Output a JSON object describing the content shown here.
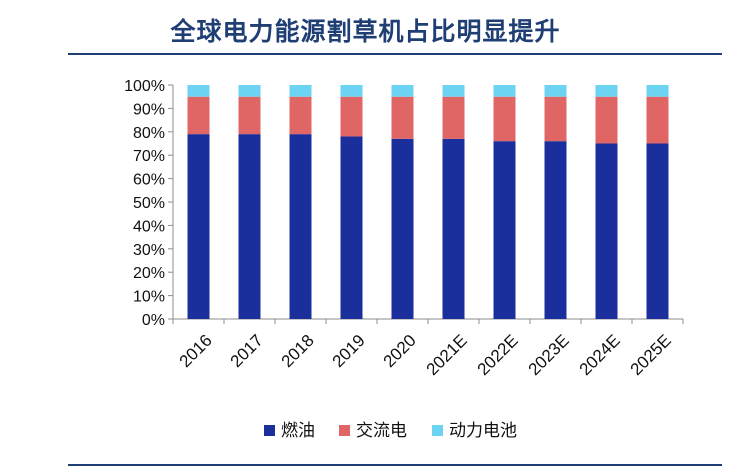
{
  "chart_data": {
    "type": "bar",
    "stacked": true,
    "title": "全球电力能源割草机占比明显提升",
    "categories": [
      "2016",
      "2017",
      "2018",
      "2019",
      "2020",
      "2021E",
      "2022E",
      "2023E",
      "2024E",
      "2025E"
    ],
    "series": [
      {
        "name": "燃油",
        "color": "#1b2f9c",
        "values": [
          79,
          79,
          79,
          78,
          77,
          77,
          76,
          76,
          75,
          75
        ]
      },
      {
        "name": "交流电",
        "color": "#e06666",
        "values": [
          16,
          16,
          16,
          17,
          18,
          18,
          19,
          19,
          20,
          20
        ]
      },
      {
        "name": "动力电池",
        "color": "#6dd3f2",
        "values": [
          5,
          5,
          5,
          5,
          5,
          5,
          5,
          5,
          5,
          5
        ]
      }
    ],
    "y_ticks": [
      "0%",
      "10%",
      "20%",
      "30%",
      "40%",
      "50%",
      "60%",
      "70%",
      "80%",
      "90%",
      "100%"
    ],
    "ylim": [
      0,
      100
    ],
    "grid": false,
    "legend_position": "bottom",
    "xlabel": "",
    "ylabel": ""
  }
}
